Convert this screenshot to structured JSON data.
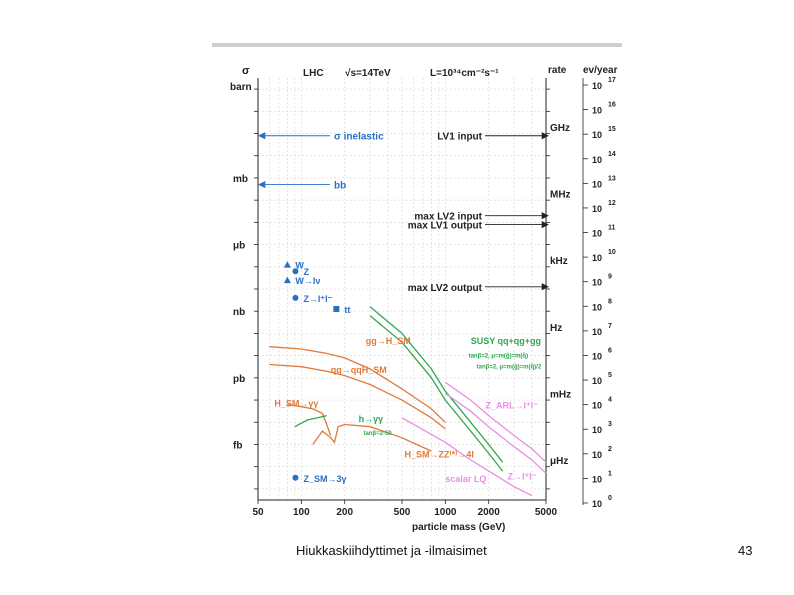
{
  "footer": {
    "text": "Hiukkaskiihdyttimet ja -ilmaisimet",
    "page": "43"
  },
  "chart_data": {
    "type": "line",
    "header": {
      "sigma": "σ",
      "barn": "barn",
      "lhc": "LHC",
      "sqrt_s": "√s=14TeV",
      "lumi": "L=10³⁴cm⁻²s⁻¹",
      "rate": "rate",
      "evyear": "ev/year"
    },
    "xlabel": "particle mass (GeV)",
    "x_ticks": [
      50,
      100,
      200,
      500,
      1000,
      2000,
      5000
    ],
    "xlim": [
      50,
      5000
    ],
    "y_left_labels": [
      {
        "label": "mb",
        "log_barn": -3
      },
      {
        "label": "μb",
        "log_barn": -6
      },
      {
        "label": "nb",
        "log_barn": -9
      },
      {
        "label": "pb",
        "log_barn": -12
      },
      {
        "label": "fb",
        "log_barn": -15
      }
    ],
    "rate_labels": [
      {
        "label": "GHz",
        "log_barn": -0.7
      },
      {
        "label": "MHz",
        "log_barn": -3.7
      },
      {
        "label": "kHz",
        "log_barn": -6.7
      },
      {
        "label": "Hz",
        "log_barn": -9.7
      },
      {
        "label": "mHz",
        "log_barn": -12.7
      },
      {
        "label": "μHz",
        "log_barn": -15.7
      }
    ],
    "ev_year_exponents": [
      17,
      16,
      15,
      14,
      13,
      12,
      11,
      10,
      9,
      8,
      7,
      6,
      5,
      4,
      3,
      2,
      1,
      0
    ],
    "ylim_log_barn": [
      -17.5,
      1.5
    ],
    "levels": [
      {
        "label": "σ inelastic",
        "log_barn": -1.1,
        "side": "left",
        "color": "#2a6fc4"
      },
      {
        "label": "bb",
        "log_barn": -3.3,
        "side": "left",
        "color": "#2a6fc4"
      },
      {
        "label": "LV1 input",
        "log_barn": -1.1,
        "side": "right",
        "color": "#222222"
      },
      {
        "label": "max LV2 input",
        "log_barn": -4.7,
        "side": "right",
        "color": "#222222"
      },
      {
        "label": "max LV1 output",
        "log_barn": -5.1,
        "side": "right",
        "color": "#222222"
      },
      {
        "label": "max LV2 output",
        "log_barn": -7.9,
        "side": "right",
        "color": "#222222"
      }
    ],
    "points": [
      {
        "label": "W",
        "mass": 80,
        "log_barn": -6.9,
        "marker": "triangle",
        "color": "#2a6fc4"
      },
      {
        "label": "Z",
        "mass": 91,
        "log_barn": -7.2,
        "marker": "circle",
        "color": "#2a6fc4"
      },
      {
        "label": "W→lν",
        "mass": 80,
        "log_barn": -7.6,
        "marker": "triangle",
        "color": "#2a6fc4"
      },
      {
        "label": "Z→l⁺l⁻",
        "mass": 91,
        "log_barn": -8.4,
        "marker": "circle",
        "color": "#2a6fc4"
      },
      {
        "label": "tt",
        "mass": 175,
        "log_barn": -8.9,
        "marker": "square",
        "color": "#2a6fc4"
      },
      {
        "label": "Z_SM→3γ",
        "mass": 91,
        "log_barn": -16.5,
        "marker": "circle",
        "color": "#2a6fc4"
      }
    ],
    "series": [
      {
        "name": "gg→H_SM",
        "color": "#e07a3a",
        "x": [
          60,
          100,
          150,
          200,
          300,
          500,
          800,
          1000
        ],
        "y": [
          -10.6,
          -10.7,
          -10.9,
          -11.1,
          -11.6,
          -12.5,
          -13.4,
          -14.0
        ]
      },
      {
        "name": "qq→qqH_SM",
        "color": "#e07a3a",
        "x": [
          60,
          100,
          150,
          200,
          300,
          500,
          800,
          1000
        ],
        "y": [
          -11.4,
          -11.5,
          -11.7,
          -11.9,
          -12.3,
          -13.0,
          -13.8,
          -14.3
        ]
      },
      {
        "name": "H_SM→γγ",
        "color": "#e07a3a",
        "x": [
          80,
          100,
          120,
          140,
          150,
          160
        ],
        "y": [
          -13.2,
          -13.3,
          -13.4,
          -13.6,
          -14.1,
          -14.6
        ]
      },
      {
        "name": "H_SM→ZZ→4l",
        "color": "#e07a3a",
        "x": [
          120,
          140,
          160,
          170,
          180,
          200,
          300,
          500,
          800
        ],
        "y": [
          -15.0,
          -14.4,
          -14.7,
          -14.9,
          -14.2,
          -14.1,
          -14.2,
          -14.7,
          -15.3
        ]
      },
      {
        "name": "h→γγ",
        "color": "#2fa84f",
        "x": [
          90,
          110,
          130,
          150
        ],
        "y": [
          -14.2,
          -13.9,
          -13.8,
          -13.7
        ]
      },
      {
        "name": "SUSY qq+qg+gg (a)",
        "color": "#2fa84f",
        "x": [
          300,
          500,
          800,
          1000,
          1500,
          2000,
          2500
        ],
        "y": [
          -8.8,
          -10.0,
          -11.6,
          -12.6,
          -14.0,
          -15.0,
          -15.8
        ]
      },
      {
        "name": "SUSY qq+qg+gg (b)",
        "color": "#2fa84f",
        "x": [
          300,
          500,
          800,
          1000,
          1500,
          2000,
          2500
        ],
        "y": [
          -9.2,
          -10.4,
          -12.0,
          -13.0,
          -14.4,
          -15.4,
          -16.2
        ]
      },
      {
        "name": "Z_ARL→l⁺l⁻",
        "color": "#e88fe0",
        "x": [
          1000,
          1500,
          2000,
          3000,
          4000,
          5000
        ],
        "y": [
          -12.2,
          -13.0,
          -13.7,
          -14.6,
          -15.2,
          -15.8
        ]
      },
      {
        "name": "Z→l⁺l⁻ (heavy)",
        "color": "#e88fe0",
        "x": [
          1000,
          1500,
          2000,
          3000,
          4000,
          5000
        ],
        "y": [
          -12.7,
          -13.5,
          -14.2,
          -15.1,
          -15.7,
          -16.3
        ]
      },
      {
        "name": "scalar LQ",
        "color": "#e88fe0",
        "x": [
          500,
          1000,
          1500,
          2000,
          3000,
          4000
        ],
        "y": [
          -13.8,
          -14.9,
          -15.7,
          -16.2,
          -16.9,
          -17.3
        ]
      }
    ],
    "annotations": [
      {
        "text": "gg→H_SM",
        "mass": 280,
        "log_barn": -10.3,
        "color": "#e07a3a"
      },
      {
        "text": "qq→qqH_SM",
        "mass": 160,
        "log_barn": -11.6,
        "color": "#e07a3a"
      },
      {
        "text": "H_SM→γγ",
        "mass": 65,
        "log_barn": -13.1,
        "color": "#e07a3a"
      },
      {
        "text": "h→γγ",
        "mass": 250,
        "log_barn": -13.8,
        "color": "#2fa84f"
      },
      {
        "text": "tanβ=2-50",
        "mass": 270,
        "log_barn": -14.4,
        "color": "#2fa84f"
      },
      {
        "text": "SUSY qq+qg+gg",
        "mass": 1500,
        "log_barn": -10.3,
        "color": "#2fa84f"
      },
      {
        "text": "tanβ=2, μ=m(g̃)=m(q̃)",
        "mass": 1450,
        "log_barn": -10.9,
        "color": "#2fa84f"
      },
      {
        "text": "tanβ=2, μ=m(g̃)=m(q̃)/2",
        "mass": 1650,
        "log_barn": -11.4,
        "color": "#2fa84f"
      },
      {
        "text": "H_SM→ZZ⁽*⁾→4l",
        "mass": 520,
        "log_barn": -15.4,
        "color": "#e07a3a"
      },
      {
        "text": "Z_ARL→l⁺l⁻",
        "mass": 1900,
        "log_barn": -13.2,
        "color": "#e88fe0"
      },
      {
        "text": "Z→l⁺l⁻",
        "mass": 2700,
        "log_barn": -16.4,
        "color": "#e88fe0"
      },
      {
        "text": "scalar LQ",
        "mass": 1000,
        "log_barn": -16.5,
        "color": "#e88fe0"
      }
    ]
  }
}
